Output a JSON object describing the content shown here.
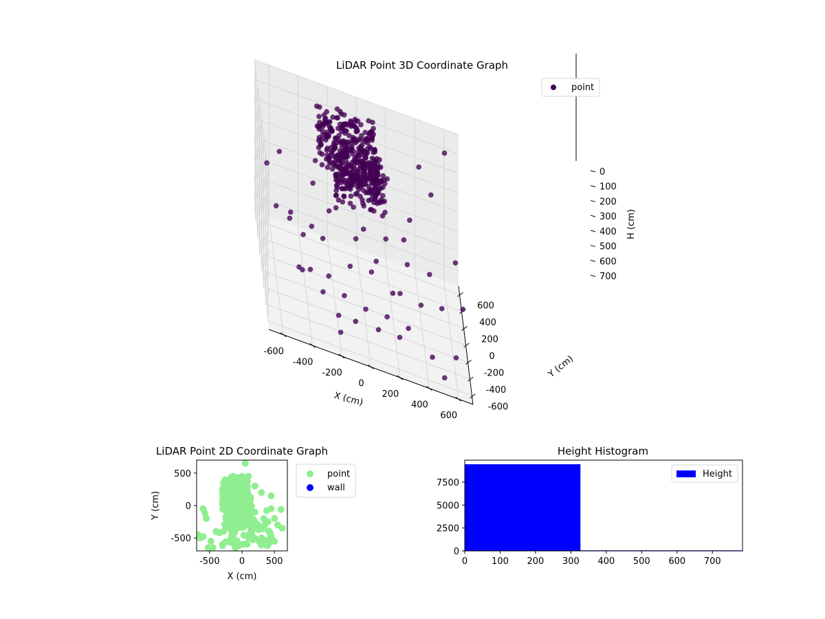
{
  "chart_data": [
    {
      "type": "scatter3d",
      "title": "LiDAR Point 3D Coordinate Graph",
      "xlabel": "X (cm)",
      "ylabel": "Y (cm)",
      "zlabel": "H (cm)",
      "xlim": [
        -700,
        700
      ],
      "ylim": [
        -700,
        700
      ],
      "zlim": [
        780,
        0
      ],
      "xticks": [
        -600,
        -400,
        -200,
        0,
        200,
        400,
        600
      ],
      "yticks": [
        -600,
        -400,
        -200,
        0,
        200,
        400,
        600
      ],
      "zticks": [
        0,
        100,
        200,
        300,
        400,
        500,
        600,
        700
      ],
      "legend": {
        "position": "top-right",
        "entries": [
          "point"
        ]
      },
      "colormap": "viridis",
      "series": [
        {
          "name": "point",
          "color": "#440154",
          "clusters": [
            {
              "x": [
                -300,
                100
              ],
              "y": [
                -100,
                500
              ],
              "h": [
                0,
                120
              ],
              "count": 260
            },
            {
              "x": [
                -200,
                150
              ],
              "y": [
                -150,
                250
              ],
              "h": [
                60,
                220
              ],
              "count": 220
            }
          ],
          "points": [
            {
              "x": -650,
              "y": 200,
              "h": 300
            },
            {
              "x": -600,
              "y": 0,
              "h": 420
            },
            {
              "x": -550,
              "y": 400,
              "h": 300
            },
            {
              "x": -500,
              "y": 100,
              "h": 500
            },
            {
              "x": -480,
              "y": 300,
              "h": 550
            },
            {
              "x": -450,
              "y": -100,
              "h": 650
            },
            {
              "x": -420,
              "y": 0,
              "h": 700
            },
            {
              "x": -400,
              "y": 200,
              "h": 600
            },
            {
              "x": -380,
              "y": -200,
              "h": 600
            },
            {
              "x": -350,
              "y": 100,
              "h": 500
            },
            {
              "x": -320,
              "y": 400,
              "h": 400
            },
            {
              "x": -300,
              "y": -300,
              "h": 650
            },
            {
              "x": -280,
              "y": 0,
              "h": 500
            },
            {
              "x": -250,
              "y": -150,
              "h": 620
            },
            {
              "x": -220,
              "y": 250,
              "h": 450
            },
            {
              "x": -200,
              "y": -400,
              "h": 700
            },
            {
              "x": -180,
              "y": 150,
              "h": 380
            },
            {
              "x": -150,
              "y": -250,
              "h": 650
            },
            {
              "x": -120,
              "y": 350,
              "h": 420
            },
            {
              "x": -100,
              "y": -100,
              "h": 550
            },
            {
              "x": -80,
              "y": -350,
              "h": 720
            },
            {
              "x": -50,
              "y": 50,
              "h": 460
            },
            {
              "x": 0,
              "y": -200,
              "h": 700
            },
            {
              "x": 20,
              "y": 300,
              "h": 500
            },
            {
              "x": 50,
              "y": -50,
              "h": 560
            },
            {
              "x": 80,
              "y": -300,
              "h": 740
            },
            {
              "x": 100,
              "y": 200,
              "h": 600
            },
            {
              "x": 150,
              "y": -150,
              "h": 720
            },
            {
              "x": 180,
              "y": 400,
              "h": 550
            },
            {
              "x": 200,
              "y": 0,
              "h": 650
            },
            {
              "x": 230,
              "y": -250,
              "h": 760
            },
            {
              "x": 260,
              "y": 150,
              "h": 700
            },
            {
              "x": 300,
              "y": -100,
              "h": 760
            },
            {
              "x": 320,
              "y": 300,
              "h": 600
            },
            {
              "x": 350,
              "y": 500,
              "h": 450
            },
            {
              "x": 400,
              "y": 100,
              "h": 700
            },
            {
              "x": 420,
              "y": 600,
              "h": 200
            },
            {
              "x": 450,
              "y": -300,
              "h": 780
            },
            {
              "x": 480,
              "y": 400,
              "h": 650
            },
            {
              "x": 500,
              "y": 550,
              "h": 300
            },
            {
              "x": 520,
              "y": -500,
              "h": 780
            },
            {
              "x": 550,
              "y": 200,
              "h": 720
            },
            {
              "x": 600,
              "y": 650,
              "h": 100
            },
            {
              "x": 620,
              "y": -200,
              "h": 780
            },
            {
              "x": 650,
              "y": 300,
              "h": 500
            },
            {
              "x": 680,
              "y": 0,
              "h": 600
            },
            {
              "x": -100,
              "y": 500,
              "h": 250
            },
            {
              "x": 200,
              "y": 550,
              "h": 300
            },
            {
              "x": 100,
              "y": 600,
              "h": 150
            },
            {
              "x": -200,
              "y": -600,
              "h": 700
            },
            {
              "x": -300,
              "y": 450,
              "h": 300
            },
            {
              "x": 300,
              "y": 350,
              "h": 500
            }
          ]
        }
      ]
    },
    {
      "type": "scatter",
      "title": "LiDAR Point 2D Coordinate Graph",
      "xlabel": "X (cm)",
      "ylabel": "Y (cm)",
      "xlim": [
        -700,
        700
      ],
      "ylim": [
        -700,
        700
      ],
      "xticks": [
        -500,
        0,
        500
      ],
      "yticks": [
        -500,
        0,
        500
      ],
      "legend": {
        "position": "outside-right",
        "entries": [
          "point",
          "wall"
        ]
      },
      "series": [
        {
          "name": "point",
          "color": "#90ee90",
          "clusters": [
            {
              "x": [
                -300,
                100
              ],
              "y": [
                -100,
                450
              ],
              "count": 220
            },
            {
              "x": [
                -250,
                150
              ],
              "y": [
                -350,
                150
              ],
              "count": 220
            },
            {
              "x": [
                -300,
                450
              ],
              "y": [
                -650,
                -200
              ],
              "count": 60
            }
          ],
          "points": [
            {
              "x": -680,
              "y": -450
            },
            {
              "x": -650,
              "y": -500
            },
            {
              "x": -600,
              "y": -480
            },
            {
              "x": -600,
              "y": -50
            },
            {
              "x": -570,
              "y": -120
            },
            {
              "x": -550,
              "y": -200
            },
            {
              "x": -520,
              "y": -650
            },
            {
              "x": -480,
              "y": -550
            },
            {
              "x": -450,
              "y": -650
            },
            {
              "x": -400,
              "y": -400
            },
            {
              "x": -350,
              "y": -420
            },
            {
              "x": -300,
              "y": -600
            },
            {
              "x": -250,
              "y": -560
            },
            {
              "x": -150,
              "y": -550
            },
            {
              "x": -100,
              "y": -650
            },
            {
              "x": -50,
              "y": -620
            },
            {
              "x": 0,
              "y": -600
            },
            {
              "x": 50,
              "y": 650
            },
            {
              "x": 100,
              "y": 450
            },
            {
              "x": 150,
              "y": -450
            },
            {
              "x": 200,
              "y": 300
            },
            {
              "x": 200,
              "y": -100
            },
            {
              "x": 250,
              "y": -300
            },
            {
              "x": 300,
              "y": 200
            },
            {
              "x": 300,
              "y": -500
            },
            {
              "x": 350,
              "y": -600
            },
            {
              "x": 380,
              "y": -80
            },
            {
              "x": 400,
              "y": -250
            },
            {
              "x": 420,
              "y": -400
            },
            {
              "x": 450,
              "y": 150
            },
            {
              "x": 450,
              "y": -50
            },
            {
              "x": 500,
              "y": -200
            },
            {
              "x": 500,
              "y": -550
            },
            {
              "x": 550,
              "y": -300
            },
            {
              "x": 600,
              "y": -60
            },
            {
              "x": 620,
              "y": -350
            }
          ]
        },
        {
          "name": "wall",
          "color": "#0000ff",
          "points": []
        }
      ]
    },
    {
      "type": "bar",
      "title": "Height Histogram",
      "xlabel": "",
      "ylabel": "",
      "xlim": [
        0,
        785
      ],
      "ylim": [
        0,
        9900
      ],
      "xticks": [
        0,
        100,
        200,
        300,
        400,
        500,
        600,
        700
      ],
      "yticks": [
        0,
        2500,
        5000,
        7500
      ],
      "legend": {
        "position": "top-right",
        "entries": [
          "Height"
        ]
      },
      "series": [
        {
          "name": "Height",
          "color": "#0000ff",
          "bins": [
            {
              "x0": 0,
              "x1": 327,
              "value": 9450
            },
            {
              "x0": 327,
              "x1": 785,
              "value": 60
            }
          ]
        }
      ]
    }
  ]
}
